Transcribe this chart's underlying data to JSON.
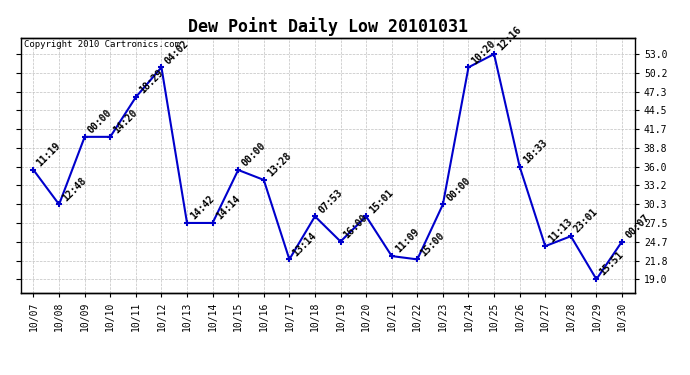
{
  "title": "Dew Point Daily Low 20101031",
  "copyright": "Copyright 2010 Cartronics.com",
  "x_labels": [
    "10/07",
    "10/08",
    "10/09",
    "10/10",
    "10/11",
    "10/12",
    "10/13",
    "10/14",
    "10/15",
    "10/16",
    "10/17",
    "10/18",
    "10/19",
    "10/20",
    "10/21",
    "10/22",
    "10/23",
    "10/24",
    "10/25",
    "10/26",
    "10/27",
    "10/28",
    "10/29",
    "10/30"
  ],
  "y_values": [
    35.5,
    30.3,
    40.5,
    40.5,
    46.5,
    51.0,
    27.5,
    27.5,
    35.5,
    34.0,
    22.0,
    28.5,
    24.7,
    28.5,
    22.5,
    22.0,
    30.3,
    51.0,
    53.0,
    36.0,
    24.0,
    25.5,
    19.0,
    24.7
  ],
  "point_labels": [
    "11:19",
    "12:48",
    "00:00",
    "14:20",
    "18:29",
    "04:02",
    "14:42",
    "14:14",
    "00:00",
    "13:28",
    "13:14",
    "07:53",
    "16:00",
    "15:01",
    "11:09",
    "15:00",
    "00:00",
    "10:20",
    "12:16",
    "18:33",
    "11:13",
    "23:01",
    "15:51",
    "00:07"
  ],
  "ylim": [
    17.0,
    55.5
  ],
  "yticks": [
    19.0,
    21.8,
    24.7,
    27.5,
    30.3,
    33.2,
    36.0,
    38.8,
    41.7,
    44.5,
    47.3,
    50.2,
    53.0
  ],
  "line_color": "#0000cc",
  "marker_color": "#0000cc",
  "background_color": "#ffffff",
  "grid_color": "#c0c0c0",
  "title_fontsize": 12,
  "label_fontsize": 7,
  "tick_fontsize": 7,
  "copyright_fontsize": 6.5
}
